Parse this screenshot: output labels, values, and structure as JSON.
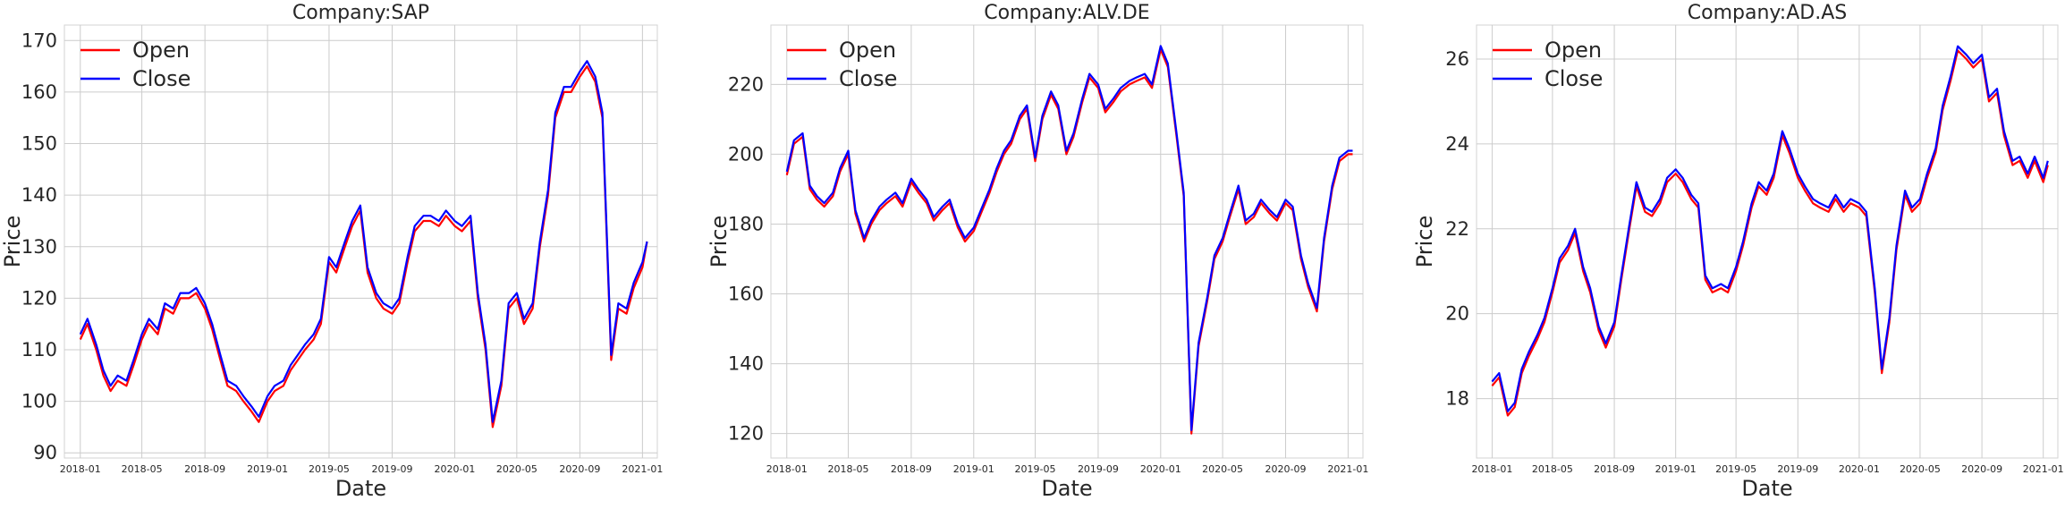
{
  "chart_data": [
    {
      "type": "line",
      "title": "Company:SAP",
      "xlabel": "Date",
      "ylabel": "Price",
      "xlim": [
        "2017-12-01",
        "2021-01-30"
      ],
      "ylim": [
        89,
        173
      ],
      "yticks": [
        90,
        100,
        110,
        120,
        130,
        140,
        150,
        160,
        170
      ],
      "xticks": [
        "2018-01",
        "2018-05",
        "2018-09",
        "2019-01",
        "2019-05",
        "2019-09",
        "2020-01",
        "2020-05",
        "2020-09",
        "2021-01"
      ],
      "grid": true,
      "legend_position": "top-left",
      "x": [
        "2018-01-01",
        "2018-01-15",
        "2018-02-01",
        "2018-02-15",
        "2018-03-01",
        "2018-03-15",
        "2018-04-01",
        "2018-04-15",
        "2018-05-01",
        "2018-05-15",
        "2018-06-01",
        "2018-06-15",
        "2018-07-01",
        "2018-07-15",
        "2018-08-01",
        "2018-08-15",
        "2018-09-01",
        "2018-09-15",
        "2018-10-01",
        "2018-10-15",
        "2018-11-01",
        "2018-11-15",
        "2018-12-01",
        "2018-12-15",
        "2019-01-01",
        "2019-01-15",
        "2019-02-01",
        "2019-02-15",
        "2019-03-01",
        "2019-03-15",
        "2019-04-01",
        "2019-04-15",
        "2019-05-01",
        "2019-05-15",
        "2019-06-01",
        "2019-06-15",
        "2019-07-01",
        "2019-07-15",
        "2019-08-01",
        "2019-08-15",
        "2019-09-01",
        "2019-09-15",
        "2019-10-01",
        "2019-10-15",
        "2019-11-01",
        "2019-11-15",
        "2019-12-01",
        "2019-12-15",
        "2020-01-01",
        "2020-01-15",
        "2020-02-01",
        "2020-02-15",
        "2020-03-01",
        "2020-03-15",
        "2020-04-01",
        "2020-04-15",
        "2020-05-01",
        "2020-05-15",
        "2020-06-01",
        "2020-06-15",
        "2020-07-01",
        "2020-07-15",
        "2020-08-01",
        "2020-08-15",
        "2020-09-01",
        "2020-09-15",
        "2020-10-01",
        "2020-10-15",
        "2020-11-01",
        "2020-11-15",
        "2020-12-01",
        "2020-12-15",
        "2021-01-01",
        "2021-01-10"
      ],
      "series": [
        {
          "name": "Open",
          "color": "#ff0000",
          "values": [
            112,
            115,
            110,
            105,
            102,
            104,
            103,
            107,
            112,
            115,
            113,
            118,
            117,
            120,
            120,
            121,
            118,
            114,
            108,
            103,
            102,
            100,
            98,
            96,
            100,
            102,
            103,
            106,
            108,
            110,
            112,
            115,
            127,
            125,
            130,
            134,
            137,
            125,
            120,
            118,
            117,
            119,
            127,
            133,
            135,
            135,
            134,
            136,
            134,
            133,
            135,
            120,
            110,
            95,
            103,
            118,
            120,
            115,
            118,
            130,
            140,
            155,
            160,
            160,
            163,
            165,
            162,
            155,
            108,
            118,
            117,
            122,
            126,
            131
          ]
        },
        {
          "name": "Close",
          "color": "#0000ff",
          "values": [
            113,
            116,
            111,
            106,
            103,
            105,
            104,
            108,
            113,
            116,
            114,
            119,
            118,
            121,
            121,
            122,
            119,
            115,
            109,
            104,
            103,
            101,
            99,
            97,
            101,
            103,
            104,
            107,
            109,
            111,
            113,
            116,
            128,
            126,
            131,
            135,
            138,
            126,
            121,
            119,
            118,
            120,
            128,
            134,
            136,
            136,
            135,
            137,
            135,
            134,
            136,
            121,
            111,
            96,
            104,
            119,
            121,
            116,
            119,
            131,
            141,
            156,
            161,
            161,
            164,
            166,
            163,
            156,
            109,
            119,
            118,
            123,
            127,
            131
          ]
        }
      ]
    },
    {
      "type": "line",
      "title": "Company:ALV.DE",
      "xlabel": "Date",
      "ylabel": "Price",
      "xlim": [
        "2017-12-01",
        "2021-01-30"
      ],
      "ylim": [
        113,
        237
      ],
      "yticks": [
        120,
        140,
        160,
        180,
        200,
        220
      ],
      "xticks": [
        "2018-01",
        "2018-05",
        "2018-09",
        "2019-01",
        "2019-05",
        "2019-09",
        "2020-01",
        "2020-05",
        "2020-09",
        "2021-01"
      ],
      "grid": true,
      "legend_position": "top-left",
      "x": [
        "2018-01-01",
        "2018-01-15",
        "2018-02-01",
        "2018-02-15",
        "2018-03-01",
        "2018-03-15",
        "2018-04-01",
        "2018-04-15",
        "2018-05-01",
        "2018-05-15",
        "2018-06-01",
        "2018-06-15",
        "2018-07-01",
        "2018-07-15",
        "2018-08-01",
        "2018-08-15",
        "2018-09-01",
        "2018-09-15",
        "2018-10-01",
        "2018-10-15",
        "2018-11-01",
        "2018-11-15",
        "2018-12-01",
        "2018-12-15",
        "2019-01-01",
        "2019-01-15",
        "2019-02-01",
        "2019-02-15",
        "2019-03-01",
        "2019-03-15",
        "2019-04-01",
        "2019-04-15",
        "2019-05-01",
        "2019-05-15",
        "2019-06-01",
        "2019-06-15",
        "2019-07-01",
        "2019-07-15",
        "2019-08-01",
        "2019-08-15",
        "2019-09-01",
        "2019-09-15",
        "2019-10-01",
        "2019-10-15",
        "2019-11-01",
        "2019-11-15",
        "2019-12-01",
        "2019-12-15",
        "2020-01-01",
        "2020-01-15",
        "2020-02-01",
        "2020-02-15",
        "2020-03-01",
        "2020-03-15",
        "2020-04-01",
        "2020-04-15",
        "2020-05-01",
        "2020-05-15",
        "2020-06-01",
        "2020-06-15",
        "2020-07-01",
        "2020-07-15",
        "2020-08-01",
        "2020-08-15",
        "2020-09-01",
        "2020-09-15",
        "2020-10-01",
        "2020-10-15",
        "2020-11-01",
        "2020-11-15",
        "2020-12-01",
        "2020-12-15",
        "2021-01-01",
        "2021-01-10"
      ],
      "series": [
        {
          "name": "Open",
          "color": "#ff0000",
          "values": [
            194,
            203,
            205,
            190,
            187,
            185,
            188,
            195,
            200,
            183,
            175,
            180,
            184,
            186,
            188,
            185,
            192,
            189,
            186,
            181,
            184,
            186,
            179,
            175,
            178,
            183,
            189,
            195,
            200,
            203,
            210,
            213,
            198,
            210,
            217,
            213,
            200,
            205,
            215,
            222,
            219,
            212,
            215,
            218,
            220,
            221,
            222,
            219,
            230,
            225,
            205,
            188,
            120,
            145,
            158,
            170,
            175,
            182,
            190,
            180,
            182,
            186,
            183,
            181,
            186,
            184,
            170,
            162,
            155,
            175,
            190,
            198,
            200,
            200
          ]
        },
        {
          "name": "Close",
          "color": "#0000ff",
          "values": [
            195,
            204,
            206,
            191,
            188,
            186,
            189,
            196,
            201,
            184,
            176,
            181,
            185,
            187,
            189,
            186,
            193,
            190,
            187,
            182,
            185,
            187,
            180,
            176,
            179,
            184,
            190,
            196,
            201,
            204,
            211,
            214,
            199,
            211,
            218,
            214,
            201,
            206,
            216,
            223,
            220,
            213,
            216,
            219,
            221,
            222,
            223,
            220,
            231,
            226,
            206,
            189,
            121,
            146,
            159,
            171,
            176,
            183,
            191,
            181,
            183,
            187,
            184,
            182,
            187,
            185,
            171,
            163,
            156,
            176,
            191,
            199,
            201,
            201
          ]
        }
      ]
    },
    {
      "type": "line",
      "title": "Company:AD.AS",
      "xlabel": "Date",
      "ylabel": "Price",
      "xlim": [
        "2017-12-01",
        "2021-01-30"
      ],
      "ylim": [
        16.6,
        26.8
      ],
      "yticks": [
        18,
        20,
        22,
        24,
        26
      ],
      "xticks": [
        "2018-01",
        "2018-05",
        "2018-09",
        "2019-01",
        "2019-05",
        "2019-09",
        "2020-01",
        "2020-05",
        "2020-09",
        "2021-01"
      ],
      "grid": true,
      "legend_position": "top-left",
      "x": [
        "2018-01-01",
        "2018-01-15",
        "2018-02-01",
        "2018-02-15",
        "2018-03-01",
        "2018-03-15",
        "2018-04-01",
        "2018-04-15",
        "2018-05-01",
        "2018-05-15",
        "2018-06-01",
        "2018-06-15",
        "2018-07-01",
        "2018-07-15",
        "2018-08-01",
        "2018-08-15",
        "2018-09-01",
        "2018-09-15",
        "2018-10-01",
        "2018-10-15",
        "2018-11-01",
        "2018-11-15",
        "2018-12-01",
        "2018-12-15",
        "2019-01-01",
        "2019-01-15",
        "2019-02-01",
        "2019-02-15",
        "2019-03-01",
        "2019-03-15",
        "2019-04-01",
        "2019-04-15",
        "2019-05-01",
        "2019-05-15",
        "2019-06-01",
        "2019-06-15",
        "2019-07-01",
        "2019-07-15",
        "2019-08-01",
        "2019-08-15",
        "2019-09-01",
        "2019-09-15",
        "2019-10-01",
        "2019-10-15",
        "2019-11-01",
        "2019-11-15",
        "2019-12-01",
        "2019-12-15",
        "2020-01-01",
        "2020-01-15",
        "2020-02-01",
        "2020-02-15",
        "2020-03-01",
        "2020-03-15",
        "2020-04-01",
        "2020-04-15",
        "2020-05-01",
        "2020-05-15",
        "2020-06-01",
        "2020-06-15",
        "2020-07-01",
        "2020-07-15",
        "2020-08-01",
        "2020-08-15",
        "2020-09-01",
        "2020-09-15",
        "2020-10-01",
        "2020-10-15",
        "2020-11-01",
        "2020-11-15",
        "2020-12-01",
        "2020-12-15",
        "2021-01-01",
        "2021-01-10"
      ],
      "series": [
        {
          "name": "Open",
          "color": "#ff0000",
          "values": [
            18.3,
            18.5,
            17.6,
            17.8,
            18.6,
            19.0,
            19.4,
            19.8,
            20.5,
            21.2,
            21.5,
            21.9,
            21.0,
            20.5,
            19.6,
            19.2,
            19.7,
            20.8,
            22.0,
            23.0,
            22.4,
            22.3,
            22.6,
            23.1,
            23.3,
            23.1,
            22.7,
            22.5,
            20.8,
            20.5,
            20.6,
            20.5,
            21.0,
            21.6,
            22.5,
            23.0,
            22.8,
            23.2,
            24.2,
            23.8,
            23.2,
            22.9,
            22.6,
            22.5,
            22.4,
            22.7,
            22.4,
            22.6,
            22.5,
            22.3,
            20.5,
            18.6,
            19.8,
            21.5,
            22.8,
            22.4,
            22.6,
            23.2,
            23.8,
            24.8,
            25.5,
            26.2,
            26.0,
            25.8,
            26.0,
            25.0,
            25.2,
            24.2,
            23.5,
            23.6,
            23.2,
            23.6,
            23.1,
            23.5
          ]
        },
        {
          "name": "Close",
          "color": "#0000ff",
          "values": [
            18.4,
            18.6,
            17.7,
            17.9,
            18.7,
            19.1,
            19.5,
            19.9,
            20.6,
            21.3,
            21.6,
            22.0,
            21.1,
            20.6,
            19.7,
            19.3,
            19.8,
            20.9,
            22.1,
            23.1,
            22.5,
            22.4,
            22.7,
            23.2,
            23.4,
            23.2,
            22.8,
            22.6,
            20.9,
            20.6,
            20.7,
            20.6,
            21.1,
            21.7,
            22.6,
            23.1,
            22.9,
            23.3,
            24.3,
            23.9,
            23.3,
            23.0,
            22.7,
            22.6,
            22.5,
            22.8,
            22.5,
            22.7,
            22.6,
            22.4,
            20.6,
            18.7,
            19.9,
            21.6,
            22.9,
            22.5,
            22.7,
            23.3,
            23.9,
            24.9,
            25.6,
            26.3,
            26.1,
            25.9,
            26.1,
            25.1,
            25.3,
            24.3,
            23.6,
            23.7,
            23.3,
            23.7,
            23.2,
            23.6
          ]
        }
      ]
    }
  ]
}
